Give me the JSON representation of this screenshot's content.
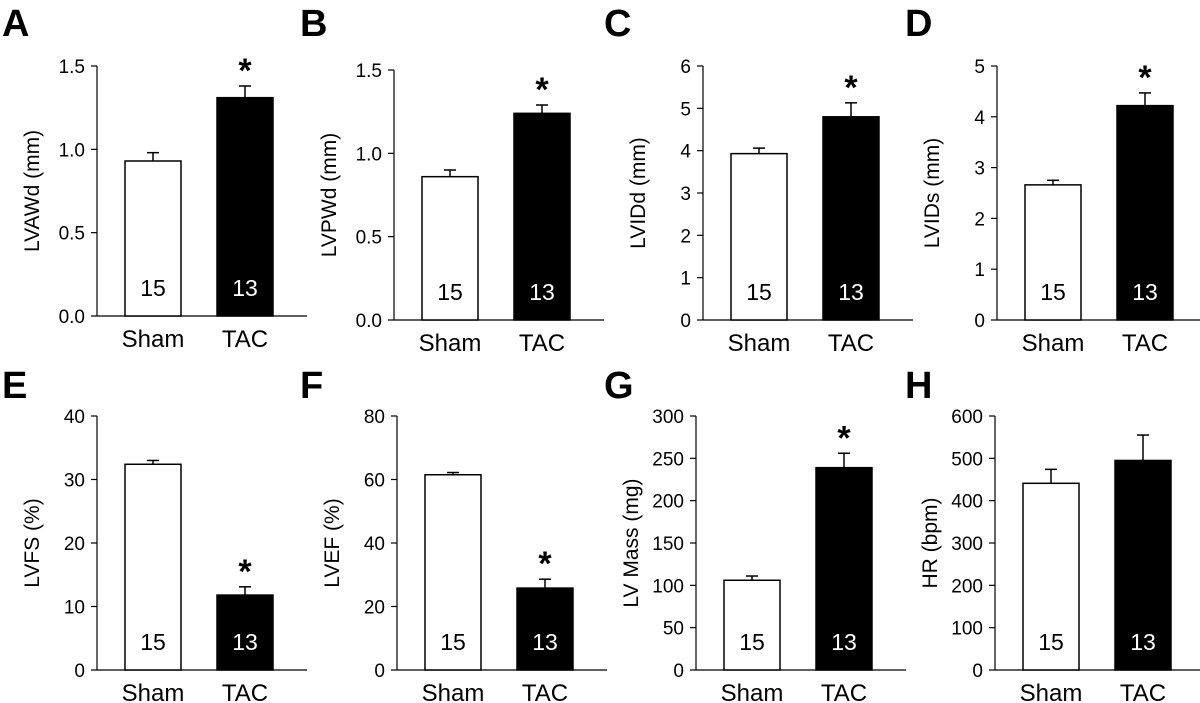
{
  "chart_data": [
    {
      "panel": "A",
      "type": "bar",
      "ylabel": "LVAWd (mm)",
      "categories": [
        "Sham",
        "TAC"
      ],
      "values": [
        0.93,
        1.31
      ],
      "errors": [
        0.05,
        0.07
      ],
      "n": [
        "15",
        "13"
      ],
      "significant": [
        false,
        true
      ],
      "ylim": [
        0,
        1.5
      ],
      "yticks": [
        "0.0",
        "0.5",
        "1.0",
        "1.5"
      ],
      "sig_symbol": "*"
    },
    {
      "panel": "B",
      "type": "bar",
      "ylabel": "LVPWd (mm)",
      "categories": [
        "Sham",
        "TAC"
      ],
      "values": [
        0.86,
        1.24
      ],
      "errors": [
        0.04,
        0.05
      ],
      "n": [
        "15",
        "13"
      ],
      "significant": [
        false,
        true
      ],
      "ylim": [
        0,
        1.5
      ],
      "yticks": [
        "0.0",
        "0.5",
        "1.0",
        "1.5"
      ],
      "sig_symbol": "*"
    },
    {
      "panel": "C",
      "type": "bar",
      "ylabel": "LVIDd (mm)",
      "categories": [
        "Sham",
        "TAC"
      ],
      "values": [
        3.93,
        4.8
      ],
      "errors": [
        0.13,
        0.33
      ],
      "n": [
        "15",
        "13"
      ],
      "significant": [
        false,
        true
      ],
      "ylim": [
        0,
        6
      ],
      "yticks": [
        "0",
        "1",
        "2",
        "3",
        "4",
        "5",
        "6"
      ],
      "sig_symbol": "*"
    },
    {
      "panel": "D",
      "type": "bar",
      "ylabel": "LVIDs (mm)",
      "categories": [
        "Sham",
        "TAC"
      ],
      "values": [
        2.66,
        4.22
      ],
      "errors": [
        0.09,
        0.25
      ],
      "n": [
        "15",
        "13"
      ],
      "significant": [
        false,
        true
      ],
      "ylim": [
        0,
        5
      ],
      "yticks": [
        "0",
        "1",
        "2",
        "3",
        "4",
        "5"
      ],
      "sig_symbol": "*"
    },
    {
      "panel": "E",
      "type": "bar",
      "ylabel": "LVFS (%)",
      "categories": [
        "Sham",
        "TAC"
      ],
      "values": [
        32.4,
        11.8
      ],
      "errors": [
        0.6,
        1.3
      ],
      "n": [
        "15",
        "13"
      ],
      "significant": [
        false,
        true
      ],
      "ylim": [
        0,
        40
      ],
      "yticks": [
        "0",
        "10",
        "20",
        "30",
        "40"
      ],
      "sig_symbol": "*"
    },
    {
      "panel": "F",
      "type": "bar",
      "ylabel": "LVEF (%)",
      "categories": [
        "Sham",
        "TAC"
      ],
      "values": [
        61.5,
        25.8
      ],
      "errors": [
        0.7,
        2.8
      ],
      "n": [
        "15",
        "13"
      ],
      "significant": [
        false,
        true
      ],
      "ylim": [
        0,
        80
      ],
      "yticks": [
        "0",
        "20",
        "40",
        "60",
        "80"
      ],
      "sig_symbol": "*"
    },
    {
      "panel": "G",
      "type": "bar",
      "ylabel": "LV Mass (mg)",
      "categories": [
        "Sham",
        "TAC"
      ],
      "values": [
        106,
        239
      ],
      "errors": [
        5,
        17
      ],
      "n": [
        "15",
        "13"
      ],
      "significant": [
        false,
        true
      ],
      "ylim": [
        0,
        300
      ],
      "yticks": [
        "0",
        "50",
        "100",
        "150",
        "200",
        "250",
        "300"
      ],
      "sig_symbol": "*"
    },
    {
      "panel": "H",
      "type": "bar",
      "ylabel": "HR (bpm)",
      "categories": [
        "Sham",
        "TAC"
      ],
      "values": [
        441,
        495
      ],
      "errors": [
        33,
        60
      ],
      "n": [
        "15",
        "13"
      ],
      "significant": [
        false,
        false
      ],
      "ylim": [
        0,
        600
      ],
      "yticks": [
        "0",
        "100",
        "200",
        "300",
        "400",
        "500",
        "600"
      ],
      "sig_symbol": "*"
    }
  ]
}
